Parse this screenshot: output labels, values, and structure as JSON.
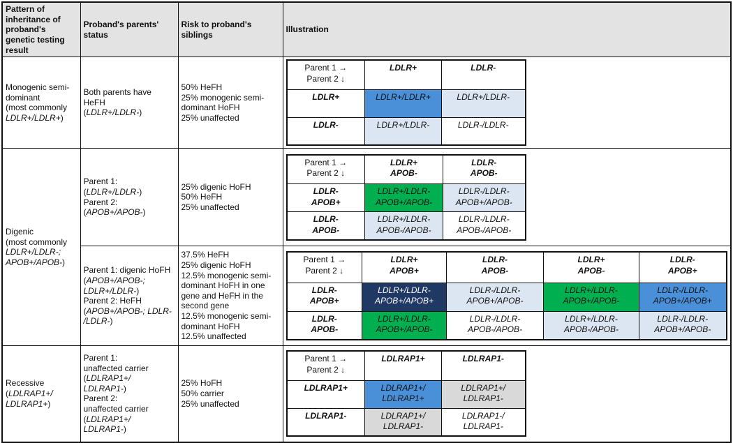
{
  "colors": {
    "blue": "#4a90d9",
    "lightblue": "#dce6f2",
    "navy": "#1f3864",
    "green": "#00b050",
    "gray": "#d9d9d9",
    "white": "#ffffff",
    "header_bg": "#e3e3e3",
    "border": "#111111"
  },
  "header": {
    "columns": [
      "Pattern of inheritance of proband's genetic testing result",
      "Proband's parents' status",
      "Risk to proband's siblings",
      "Illustration"
    ]
  },
  "rows": [
    {
      "pattern": "Monogenic semi-\ndominant\n(most commonly\n*LDLR+/LDLR+*)",
      "parents": "Both parents have HeFH\n(*LDLR+/LDLR-*)",
      "risk": "50% HeFH\n25% monogenic semi-\ndominant HoFH\n25% unaffected"
    },
    {
      "pattern": "Digenic\n(most commonly\n*LDLR+/LDLR-;*\n*APOB+/APOB-*)",
      "parents": "Parent 1: (*LDLR+/LDLR-*)\nParent 2:\n(*APOB+/APOB-*)",
      "risk": "25% digenic HoFH\n50% HeFH\n25% unaffected"
    },
    {
      "parents": "Parent 1: digenic HoFH\n(*APOB+/APOB-;*\n*LDLR+/LDLR-*)\nParent 2: HeFH\n(*APOB+/APOB-; LDLR-*\n*/LDLR-*)",
      "risk": "37.5% HeFH\n25% digenic HoFH\n12.5% monogenic semi-\ndominant HoFH in one\ngene and HeFH in the\nsecond gene\n12.5% monogenic semi-\ndominant HoFH\n12.5% unaffected"
    },
    {
      "pattern": "Recessive\n(*LDLRAP1+/*\n*LDLRAP1+*)",
      "parents": "Parent 1:\nunaffected carrier\n(*LDLRAP1+/ LDLRAP1-*)\nParent 2:\nunaffected carrier\n(*LDLRAP1+/ LDLRAP1-*)",
      "risk": "25% HoFH\n50% carrier\n25% unaffected"
    }
  ],
  "illustrations": [
    {
      "corner": "Parent 1 →\nParent 2 ↓",
      "col_headers": [
        "LDLR+",
        "LDLR-"
      ],
      "row_headers": [
        "LDLR+",
        "LDLR-"
      ],
      "cells": [
        [
          {
            "text": "LDLR+/LDLR+",
            "bg": "blue"
          },
          {
            "text": "LDLR+/LDLR-",
            "bg": "lightblue"
          }
        ],
        [
          {
            "text": "LDLR+/LDLR-",
            "bg": "lightblue"
          },
          {
            "text": "LDLR-/LDLR-",
            "bg": "white"
          }
        ]
      ]
    },
    {
      "corner": "Parent 1 →\nParent 2 ↓",
      "col_headers": [
        "LDLR+\nAPOB-",
        "LDLR-\nAPOB-"
      ],
      "row_headers": [
        "LDLR-\nAPOB+",
        "LDLR-\nAPOB-"
      ],
      "cells": [
        [
          {
            "text": "LDLR+/LDLR-\nAPOB+/APOB-",
            "bg": "green"
          },
          {
            "text": "LDLR-/LDLR-\nAPOB+/APOB-",
            "bg": "lightblue"
          }
        ],
        [
          {
            "text": "LDLR+/LDLR-\nAPOB-/APOB-",
            "bg": "lightblue"
          },
          {
            "text": "LDLR-/LDLR-\nAPOB-/APOB-",
            "bg": "white"
          }
        ]
      ]
    },
    {
      "corner": "Parent 1 →\nParent 2 ↓",
      "col_headers": [
        "LDLR+\nAPOB+",
        "LDLR-\nAPOB-",
        "LDLR+\nAPOB-",
        "LDLR-\nAPOB+"
      ],
      "row_headers": [
        "LDLR-\nAPOB+",
        "LDLR-\nAPOB-"
      ],
      "cells": [
        [
          {
            "text": "LDLR+/LDLR-\nAPOB+/APOB+",
            "bg": "navy",
            "fg": "#ffffff"
          },
          {
            "text": "LDLR-/LDLR-\nAPOB+/APOB-",
            "bg": "lightblue"
          },
          {
            "text": "LDLR+/LDLR-\nAPOB+/APOB-",
            "bg": "green"
          },
          {
            "text": "LDLR-/LDLR-\nAPOB+/APOB+",
            "bg": "blue"
          }
        ],
        [
          {
            "text": "LDLR+/LDLR-\nAPOB+/APOB-",
            "bg": "green"
          },
          {
            "text": "LDLR-/LDLR-\nAPOB-/APOB-",
            "bg": "white"
          },
          {
            "text": "LDLR+/LDLR-\nAPOB-/APOB-",
            "bg": "lightblue"
          },
          {
            "text": "LDLR-/LDLR-\nAPOB+/APOB-",
            "bg": "lightblue"
          }
        ]
      ]
    },
    {
      "corner": "Parent 1 →\nParent 2 ↓",
      "col_headers": [
        "LDLRAP1+",
        "LDLRAP1-"
      ],
      "row_headers": [
        "LDLRAP1+",
        "LDLRAP1-"
      ],
      "cells": [
        [
          {
            "text": "LDLRAP1+/\nLDLRAP1+",
            "bg": "blue"
          },
          {
            "text": "LDLRAP1+/\nLDLRAP1-",
            "bg": "gray"
          }
        ],
        [
          {
            "text": "LDLRAP1+/\nLDLRAP1-",
            "bg": "gray"
          },
          {
            "text": "LDLRAP1-/\nLDLRAP1-",
            "bg": "white"
          }
        ]
      ]
    }
  ]
}
